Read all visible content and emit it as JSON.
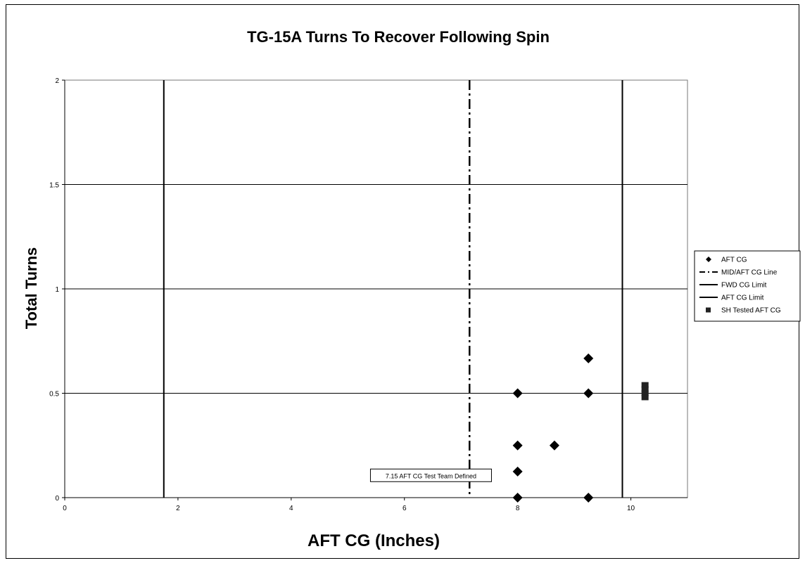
{
  "chart_data": {
    "type": "scatter",
    "title": "TG-15A Turns To Recover Following Spin",
    "xlabel": "AFT CG (Inches)",
    "ylabel": "Total Turns",
    "xlim": [
      0,
      11
    ],
    "ylim": [
      0,
      2
    ],
    "x_ticks": [
      0,
      2,
      4,
      6,
      8,
      10
    ],
    "y_ticks": [
      0,
      0.5,
      1,
      1.5,
      2
    ],
    "x_tick_labels": [
      "0",
      "2",
      "4",
      "6",
      "8",
      "10"
    ],
    "y_tick_labels": [
      "0",
      "0.5",
      "1",
      "1.5",
      "2"
    ],
    "grid": "horizontal",
    "legend_position": "right",
    "series": [
      {
        "name": "AFT CG",
        "kind": "points",
        "marker": "diamond",
        "points": [
          {
            "x": 8.0,
            "y": 0.5
          },
          {
            "x": 8.0,
            "y": 0.25
          },
          {
            "x": 8.0,
            "y": 0.125
          },
          {
            "x": 8.0,
            "y": 0.0
          },
          {
            "x": 8.65,
            "y": 0.25
          },
          {
            "x": 9.25,
            "y": 0.667
          },
          {
            "x": 9.25,
            "y": 0.5
          },
          {
            "x": 9.25,
            "y": 0.0
          }
        ]
      },
      {
        "name": "MID/AFT CG Line",
        "kind": "vline",
        "style": "dash-dot",
        "x": 7.15
      },
      {
        "name": "FWD CG Limit",
        "kind": "vline",
        "style": "solid",
        "x": 1.75
      },
      {
        "name": "AFT CG Limit",
        "kind": "vline",
        "style": "solid",
        "x": 9.85
      },
      {
        "name": "SH Tested AFT CG",
        "kind": "points",
        "marker": "square",
        "points": [
          {
            "x": 10.25,
            "y": 0.54
          },
          {
            "x": 10.25,
            "y": 0.52
          },
          {
            "x": 10.25,
            "y": 0.5
          },
          {
            "x": 10.25,
            "y": 0.48
          }
        ]
      }
    ],
    "annotations": [
      {
        "text": "7.15 AFT CG Test Team Defined",
        "x": 5.4,
        "y": 0.09
      }
    ]
  }
}
